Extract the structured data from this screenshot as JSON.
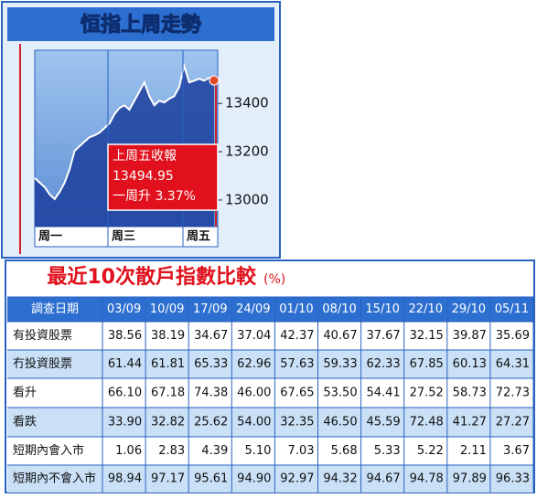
{
  "chart_data": {
    "type": "area",
    "title": "恒指上周走勢",
    "x_labels": [
      "周一",
      "周三",
      "周五"
    ],
    "values": [
      13091,
      13072,
      13053,
      13023,
      13004,
      13034,
      13072,
      13128,
      13204,
      13223,
      13242,
      13260,
      13268,
      13279,
      13298,
      13317,
      13355,
      13381,
      13392,
      13374,
      13411,
      13449,
      13487,
      13430,
      13392,
      13411,
      13404,
      13419,
      13430,
      13468,
      13555,
      13487,
      13494,
      13502,
      13494,
      13506,
      13494.95
    ],
    "color": "#1c3f9e",
    "ylim": [
      12890,
      13620
    ],
    "yticks": [
      13000,
      13200,
      13400
    ],
    "annotation": [
      "上周五收報",
      "13494.95",
      "一周升 3.37%"
    ]
  },
  "table": {
    "title": "最近10次散戶指數比較",
    "unit": "(%)",
    "header": [
      "調查日期",
      "03/09",
      "10/09",
      "17/09",
      "24/09",
      "01/10",
      "08/10",
      "15/10",
      "22/10",
      "29/10",
      "05/11"
    ],
    "rows": [
      [
        "有投資股票",
        "38.56",
        "38.19",
        "34.67",
        "37.04",
        "42.37",
        "40.67",
        "37.67",
        "32.15",
        "39.87",
        "35.69"
      ],
      [
        "冇投資股票",
        "61.44",
        "61.81",
        "65.33",
        "62.96",
        "57.63",
        "59.33",
        "62.33",
        "67.85",
        "60.13",
        "64.31"
      ],
      [
        "看升",
        "66.10",
        "67.18",
        "74.38",
        "46.00",
        "67.65",
        "53.50",
        "54.41",
        "27.52",
        "58.73",
        "72.73"
      ],
      [
        "看跌",
        "33.90",
        "32.82",
        "25.62",
        "54.00",
        "32.35",
        "46.50",
        "45.59",
        "72.48",
        "41.27",
        "27.27"
      ],
      [
        "短期內會入市",
        "1.06",
        "2.83",
        "4.39",
        "5.10",
        "7.03",
        "5.68",
        "5.33",
        "5.22",
        "2.11",
        "3.67"
      ],
      [
        "短期內不會入市",
        "98.94",
        "97.17",
        "95.61",
        "94.90",
        "92.97",
        "94.32",
        "94.67",
        "94.78",
        "97.89",
        "96.33"
      ]
    ]
  }
}
